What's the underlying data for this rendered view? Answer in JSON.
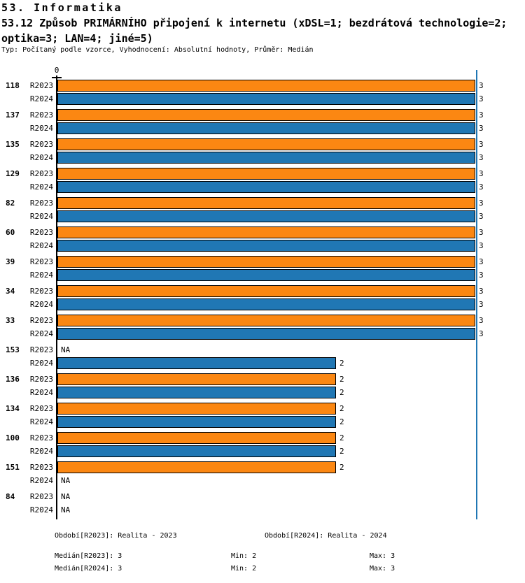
{
  "header": {
    "line1": "53. Informatika",
    "line2": "53.12 Způsob PRIMÁRNÍHO připojení k internetu (xDSL=1; bezdrátová technologie=2;",
    "line3": "optika=3; LAN=4; jiné=5)",
    "meta": "Typ: Počítaný podle vzorce, Vyhodnocení: Absolutní hodnoty, Průměr: Medián"
  },
  "chart_data": {
    "type": "bar",
    "orientation": "horizontal",
    "title": "53.12 Způsob PRIMÁRNÍHO připojení k internetu (xDSL=1; bezdrátová technologie=2; optika=3; LAN=4; jiné=5)",
    "axis": {
      "origin_label": "0",
      "xlim": [
        0,
        3
      ],
      "reference_line_x": 3,
      "grid": false
    },
    "series_labels": [
      "R2023",
      "R2024"
    ],
    "na_label": "NA",
    "colors": {
      "R2023": "#FB8712",
      "R2024": "#2077B4",
      "reference_line": "#2077B4",
      "bar_border": "#000000"
    },
    "groups": [
      {
        "id": "118",
        "R2023": 3,
        "R2024": 3
      },
      {
        "id": "137",
        "R2023": 3,
        "R2024": 3
      },
      {
        "id": "135",
        "R2023": 3,
        "R2024": 3
      },
      {
        "id": "129",
        "R2023": 3,
        "R2024": 3
      },
      {
        "id": "82",
        "R2023": 3,
        "R2024": 3
      },
      {
        "id": "60",
        "R2023": 3,
        "R2024": 3
      },
      {
        "id": "39",
        "R2023": 3,
        "R2024": 3
      },
      {
        "id": "34",
        "R2023": 3,
        "R2024": 3
      },
      {
        "id": "33",
        "R2023": 3,
        "R2024": 3
      },
      {
        "id": "153",
        "R2023": null,
        "R2024": 2
      },
      {
        "id": "136",
        "R2023": 2,
        "R2024": 2
      },
      {
        "id": "134",
        "R2023": 2,
        "R2024": 2
      },
      {
        "id": "100",
        "R2023": 2,
        "R2024": 2
      },
      {
        "id": "151",
        "R2023": 2,
        "R2024": null
      },
      {
        "id": "84",
        "R2023": null,
        "R2024": null
      }
    ]
  },
  "footer": {
    "period_2023": "Období[R2023]: Realita - 2023",
    "period_2024": "Období[R2024]: Realita - 2024",
    "rows": [
      {
        "label": "Medián[R2023]: 3",
        "min": "Min: 2",
        "max": "Max: 3"
      },
      {
        "label": "Medián[R2024]: 3",
        "min": "Min: 2",
        "max": "Max: 3"
      }
    ]
  }
}
